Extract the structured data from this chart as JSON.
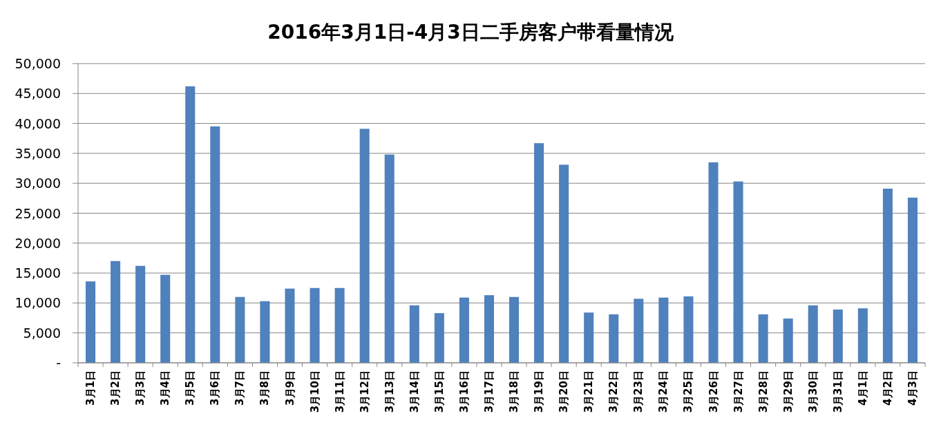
{
  "chart_data": {
    "type": "bar",
    "title": "2016年3月1日-4月3日二手房客户带看量情况",
    "categories": [
      "3月1日",
      "3月2日",
      "3月3日",
      "3月4日",
      "3月5日",
      "3月6日",
      "3月7日",
      "3月8日",
      "3月9日",
      "3月10日",
      "3月11日",
      "3月12日",
      "3月13日",
      "3月14日",
      "3月15日",
      "3月16日",
      "3月17日",
      "3月18日",
      "3月19日",
      "3月20日",
      "3月21日",
      "3月22日",
      "3月23日",
      "3月24日",
      "3月25日",
      "3月26日",
      "3月27日",
      "3月28日",
      "3月29日",
      "3月30日",
      "3月31日",
      "4月1日",
      "4月2日",
      "4月3日"
    ],
    "values": [
      13600,
      17000,
      16200,
      14700,
      46200,
      39500,
      11000,
      10300,
      12400,
      12500,
      12500,
      39100,
      34800,
      9600,
      8300,
      10900,
      11300,
      11000,
      36700,
      33100,
      8400,
      8100,
      10700,
      10900,
      11100,
      33500,
      30300,
      8100,
      7400,
      9600,
      8900,
      9100,
      29100,
      27600
    ],
    "color": "#4f81bd",
    "ylim": [
      0,
      50000
    ],
    "yticks": [
      {
        "value": 0,
        "label": "-"
      },
      {
        "value": 5000,
        "label": "5,000"
      },
      {
        "value": 10000,
        "label": "10,000"
      },
      {
        "value": 15000,
        "label": "15,000"
      },
      {
        "value": 20000,
        "label": "20,000"
      },
      {
        "value": 25000,
        "label": "25,000"
      },
      {
        "value": 30000,
        "label": "30,000"
      },
      {
        "value": 35000,
        "label": "35,000"
      },
      {
        "value": 40000,
        "label": "40,000"
      },
      {
        "value": 45000,
        "label": "45,000"
      },
      {
        "value": 50000,
        "label": "50,000"
      }
    ],
    "grid": "y"
  }
}
